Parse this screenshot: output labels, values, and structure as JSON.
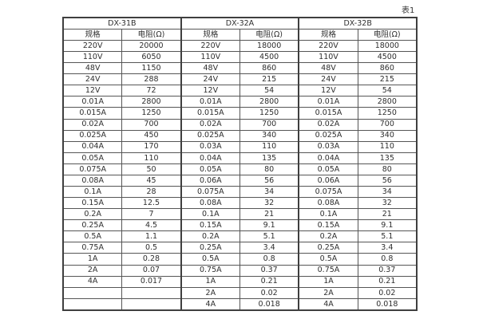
{
  "page": {
    "caption": "表1"
  },
  "table": {
    "groups": [
      {
        "name": "DX-31B",
        "col_headers": [
          "规格",
          "电阻(Ω)"
        ]
      },
      {
        "name": "DX-32A",
        "col_headers": [
          "规格",
          "电阻(Ω)"
        ]
      },
      {
        "name": "DX-32B",
        "col_headers": [
          "规格",
          "电阻(Ω)"
        ]
      }
    ],
    "rows": [
      [
        "220V",
        "20000",
        "220V",
        "18000",
        "220V",
        "18000"
      ],
      [
        "110V",
        "6050",
        "110V",
        "4500",
        "110V",
        "4500"
      ],
      [
        "48V",
        "1150",
        "48V",
        "860",
        "48V",
        "860"
      ],
      [
        "24V",
        "288",
        "24V",
        "215",
        "24V",
        "215"
      ],
      [
        "12V",
        "72",
        "12V",
        "54",
        "12V",
        "54"
      ],
      [
        "0.01A",
        "2800",
        "0.01A",
        "2800",
        "0.01A",
        "2800"
      ],
      [
        "0.015A",
        "1250",
        "0.015A",
        "1250",
        "0.015A",
        "1250"
      ],
      [
        "0.02A",
        "700",
        "0.02A",
        "700",
        "0.02A",
        "700"
      ],
      [
        "0.025A",
        "450",
        "0.025A",
        "340",
        "0.025A",
        "340"
      ],
      [
        "0.04A",
        "170",
        "0.03A",
        "110",
        "0.03A",
        "110"
      ],
      [
        "0.05A",
        "110",
        "0.04A",
        "135",
        "0.04A",
        "135"
      ],
      [
        "0.075A",
        "50",
        "0.05A",
        "80",
        "0.05A",
        "80"
      ],
      [
        "0.08A",
        "45",
        "0.06A",
        "56",
        "0.06A",
        "56"
      ],
      [
        "0.1A",
        "28",
        "0.075A",
        "34",
        "0.075A",
        "34"
      ],
      [
        "0.15A",
        "12.5",
        "0.08A",
        "32",
        "0.08A",
        "32"
      ],
      [
        "0.2A",
        "7",
        "0.1A",
        "21",
        "0.1A",
        "21"
      ],
      [
        "0.25A",
        "4.5",
        "0.15A",
        "9.1",
        "0.15A",
        "9.1"
      ],
      [
        "0.5A",
        "1.1",
        "0.2A",
        "5.1",
        "0.2A",
        "5.1"
      ],
      [
        "0.75A",
        "0.5",
        "0.25A",
        "3.4",
        "0.25A",
        "3.4"
      ],
      [
        "1A",
        "0.28",
        "0.5A",
        "0.8",
        "0.5A",
        "0.8"
      ],
      [
        "2A",
        "0.07",
        "0.75A",
        "0.37",
        "0.75A",
        "0.37"
      ],
      [
        "4A",
        "0.017",
        "1A",
        "0.21",
        "1A",
        "0.21"
      ],
      [
        "",
        "",
        "2A",
        "0.02",
        "2A",
        "0.02"
      ],
      [
        "",
        "",
        "4A",
        "0.018",
        "4A",
        "0.018"
      ]
    ]
  }
}
